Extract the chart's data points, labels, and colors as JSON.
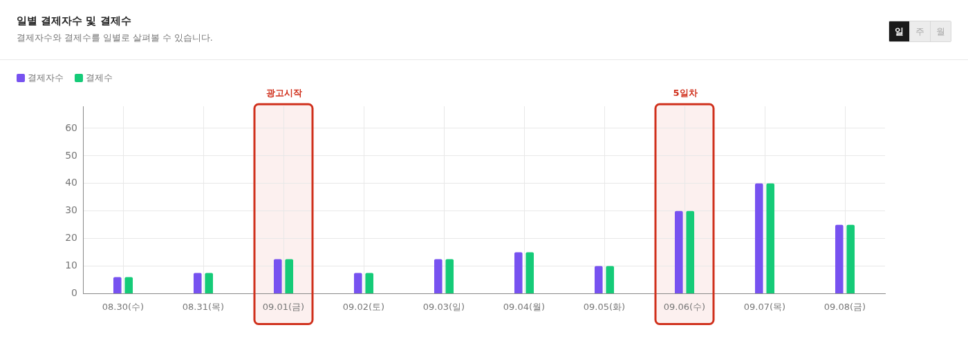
{
  "chart_data": {
    "type": "bar",
    "title": "일별 결제자수 및 결제수",
    "subtitle": "결제자수와 결제수를 일별로 살펴볼 수 있습니다.",
    "categories": [
      "08.30(수)",
      "08.31(목)",
      "09.01(금)",
      "09.02(토)",
      "09.03(일)",
      "09.04(월)",
      "09.05(화)",
      "09.06(수)",
      "09.07(목)",
      "09.08(금)"
    ],
    "series": [
      {
        "name": "결제자수",
        "color": "#7752f0",
        "values": [
          6,
          7.5,
          12.5,
          7.5,
          12.5,
          15,
          10,
          30,
          40,
          25
        ]
      },
      {
        "name": "결제수",
        "color": "#15cb78",
        "values": [
          6,
          7.5,
          12.5,
          7.5,
          12.5,
          15,
          10,
          30,
          40,
          25
        ]
      }
    ],
    "ylim": [
      0,
      68
    ],
    "yticks": [
      0,
      10,
      20,
      30,
      40,
      50,
      60
    ],
    "grid": true,
    "legend": "top left",
    "bands": [
      {
        "axis": "x",
        "from": "09.01(금)",
        "to": "09.01(금)",
        "label": "광고시작",
        "color": "#d0301c"
      },
      {
        "axis": "x",
        "from": "09.06(수)",
        "to": "09.06(수)",
        "label": "5일차",
        "color": "#d0301c"
      }
    ],
    "annotations": [
      "일",
      "주",
      "월"
    ]
  }
}
